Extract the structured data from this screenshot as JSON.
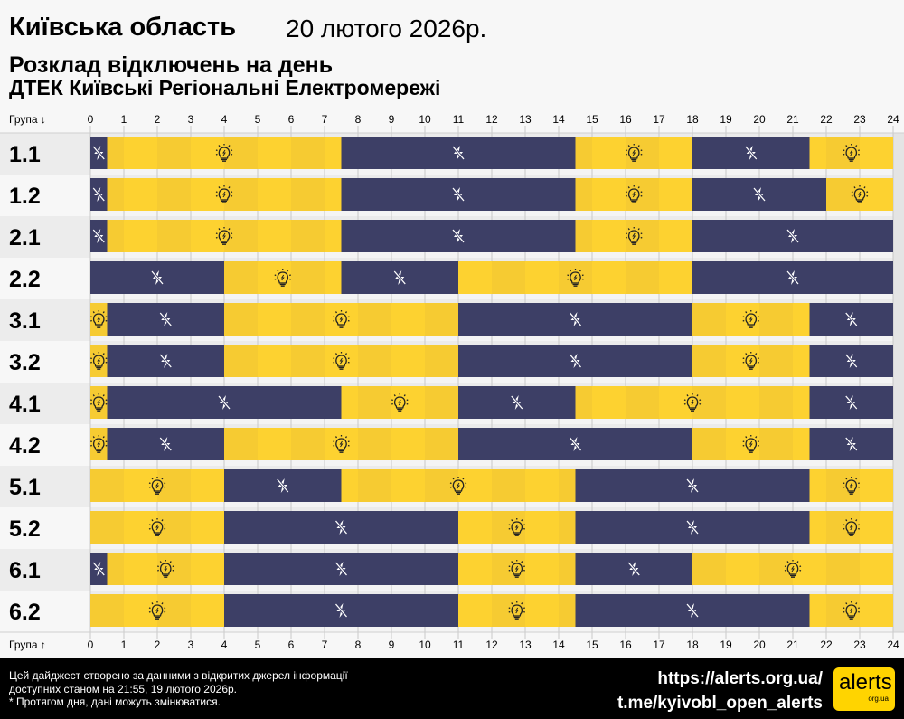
{
  "header": {
    "region": "Київська область",
    "date": "20 лютого 2026р.",
    "subtitle": "Розклад відключень на день",
    "company": "ДТЕК Київські Регіональні Електромережі"
  },
  "footer": {
    "note_line1": "Цей дайджест створено за данними з відкритих джерел інформації",
    "note_line2": "доступних станом на 21:55, 19 лютого 2026р.",
    "note_line3": "* Протягом дня, дані можуть змінюватися.",
    "link1": "https://alerts.org.ua/",
    "link2": "t.me/kyivobl_open_alerts",
    "logo_text": "alerts",
    "logo_sub": "org.ua"
  },
  "colors": {
    "off": "#3d3f66",
    "on": "#fdd230",
    "on_alt": "#f6cb32"
  },
  "chart_data": {
    "type": "timeline",
    "axis_top_label": "Група ↓",
    "axis_bottom_label": "Група ↑",
    "xlim": [
      0,
      24
    ],
    "ticks": [
      0,
      1,
      2,
      3,
      4,
      5,
      6,
      7,
      8,
      9,
      10,
      11,
      12,
      13,
      14,
      15,
      16,
      17,
      18,
      19,
      20,
      21,
      22,
      23,
      24
    ],
    "states": {
      "off": "lightning-off-icon",
      "on": "lightbulb-icon"
    },
    "groups": [
      {
        "name": "1.1",
        "segments": [
          [
            0,
            0.5,
            "off"
          ],
          [
            0.5,
            7.5,
            "on"
          ],
          [
            7.5,
            14.5,
            "off"
          ],
          [
            14.5,
            18,
            "on"
          ],
          [
            18,
            21.5,
            "off"
          ],
          [
            21.5,
            24,
            "on"
          ]
        ]
      },
      {
        "name": "1.2",
        "segments": [
          [
            0,
            0.5,
            "off"
          ],
          [
            0.5,
            7.5,
            "on"
          ],
          [
            7.5,
            14.5,
            "off"
          ],
          [
            14.5,
            18,
            "on"
          ],
          [
            18,
            22,
            "off"
          ],
          [
            22,
            24,
            "on"
          ]
        ]
      },
      {
        "name": "2.1",
        "segments": [
          [
            0,
            0.5,
            "off"
          ],
          [
            0.5,
            7.5,
            "on"
          ],
          [
            7.5,
            14.5,
            "off"
          ],
          [
            14.5,
            18,
            "on"
          ],
          [
            18,
            24,
            "off"
          ]
        ]
      },
      {
        "name": "2.2",
        "segments": [
          [
            0,
            4,
            "off"
          ],
          [
            4,
            7.5,
            "on"
          ],
          [
            7.5,
            11,
            "off"
          ],
          [
            11,
            18,
            "on"
          ],
          [
            18,
            24,
            "off"
          ]
        ]
      },
      {
        "name": "3.1",
        "segments": [
          [
            0,
            0.5,
            "on"
          ],
          [
            0.5,
            4,
            "off"
          ],
          [
            4,
            11,
            "on"
          ],
          [
            11,
            18,
            "off"
          ],
          [
            18,
            21.5,
            "on"
          ],
          [
            21.5,
            24,
            "off"
          ]
        ]
      },
      {
        "name": "3.2",
        "segments": [
          [
            0,
            0.5,
            "on"
          ],
          [
            0.5,
            4,
            "off"
          ],
          [
            4,
            11,
            "on"
          ],
          [
            11,
            18,
            "off"
          ],
          [
            18,
            21.5,
            "on"
          ],
          [
            21.5,
            24,
            "off"
          ]
        ]
      },
      {
        "name": "4.1",
        "segments": [
          [
            0,
            0.5,
            "on"
          ],
          [
            0.5,
            7.5,
            "off"
          ],
          [
            7.5,
            11,
            "on"
          ],
          [
            11,
            14.5,
            "off"
          ],
          [
            14.5,
            21.5,
            "on"
          ],
          [
            21.5,
            24,
            "off"
          ]
        ]
      },
      {
        "name": "4.2",
        "segments": [
          [
            0,
            0.5,
            "on"
          ],
          [
            0.5,
            4,
            "off"
          ],
          [
            4,
            11,
            "on"
          ],
          [
            11,
            18,
            "off"
          ],
          [
            18,
            21.5,
            "on"
          ],
          [
            21.5,
            24,
            "off"
          ]
        ]
      },
      {
        "name": "5.1",
        "segments": [
          [
            0,
            4,
            "on"
          ],
          [
            4,
            7.5,
            "off"
          ],
          [
            7.5,
            14.5,
            "on"
          ],
          [
            14.5,
            21.5,
            "off"
          ],
          [
            21.5,
            24,
            "on"
          ]
        ]
      },
      {
        "name": "5.2",
        "segments": [
          [
            0,
            4,
            "on"
          ],
          [
            4,
            11,
            "off"
          ],
          [
            11,
            14.5,
            "on"
          ],
          [
            14.5,
            21.5,
            "off"
          ],
          [
            21.5,
            24,
            "on"
          ]
        ]
      },
      {
        "name": "6.1",
        "segments": [
          [
            0,
            0.5,
            "off"
          ],
          [
            0.5,
            4,
            "on"
          ],
          [
            4,
            11,
            "off"
          ],
          [
            11,
            14.5,
            "on"
          ],
          [
            14.5,
            18,
            "off"
          ],
          [
            18,
            24,
            "on"
          ]
        ]
      },
      {
        "name": "6.2",
        "segments": [
          [
            0,
            4,
            "on"
          ],
          [
            4,
            11,
            "off"
          ],
          [
            11,
            14.5,
            "on"
          ],
          [
            14.5,
            21.5,
            "off"
          ],
          [
            21.5,
            24,
            "on"
          ]
        ]
      }
    ]
  }
}
